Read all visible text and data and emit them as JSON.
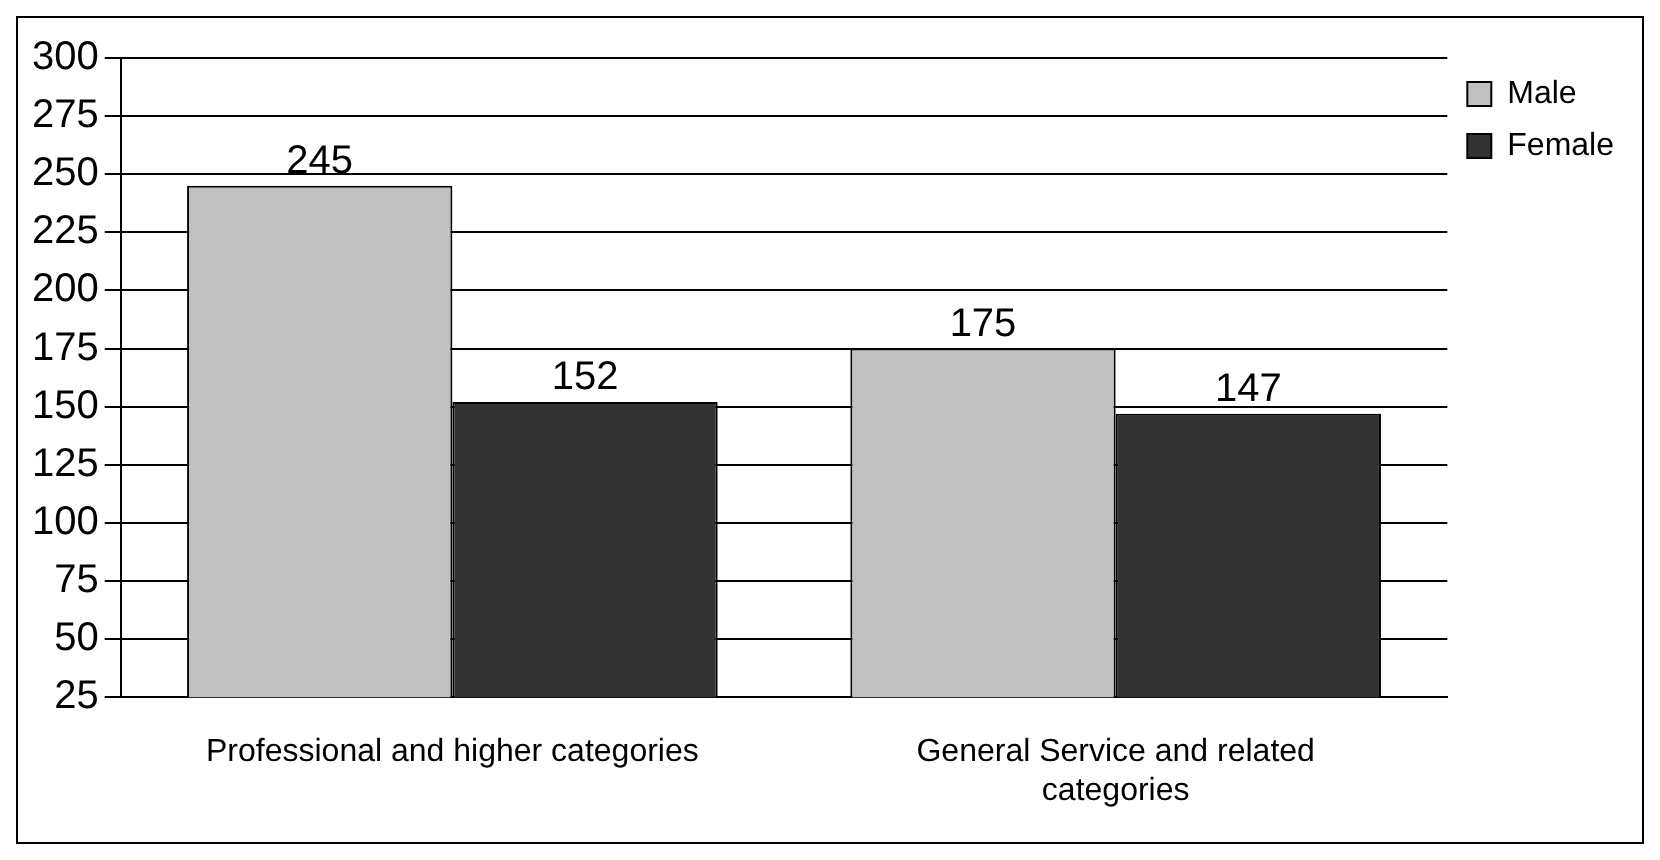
{
  "chart_data": {
    "type": "bar",
    "categories": [
      "Professional and higher categories",
      "General Service and related categories"
    ],
    "series": [
      {
        "name": "Male",
        "color": "#c0c0c0",
        "values": [
          245,
          175
        ]
      },
      {
        "name": "Female",
        "color": "#333333",
        "values": [
          152,
          147
        ]
      }
    ],
    "ylim": [
      25,
      300
    ],
    "yticks": [
      25,
      50,
      75,
      100,
      125,
      150,
      175,
      200,
      225,
      250,
      275,
      300
    ],
    "grid": "y",
    "legend": "top right",
    "data_labels": true
  }
}
